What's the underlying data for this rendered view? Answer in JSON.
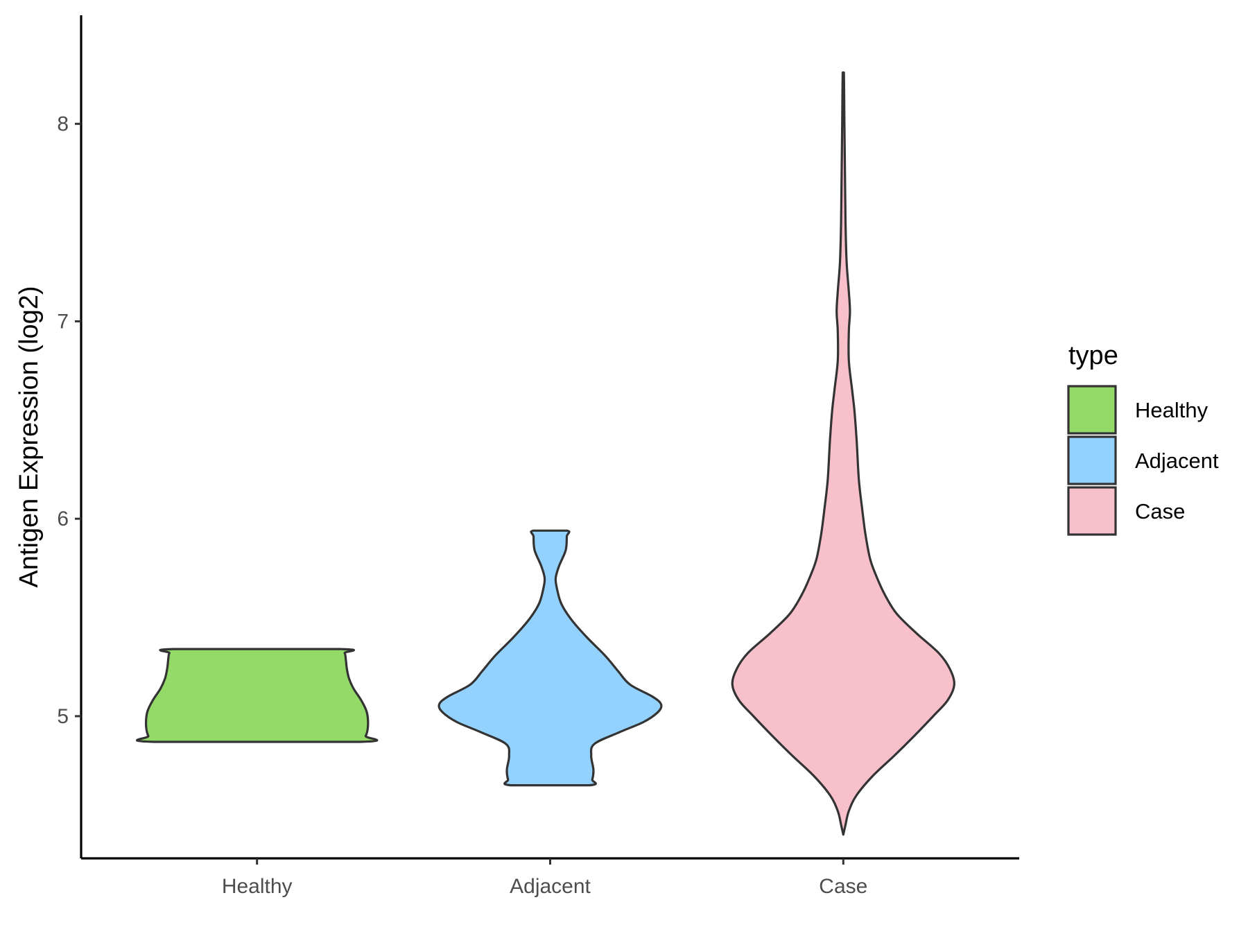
{
  "chart_data": {
    "type": "violin",
    "title": "",
    "xlabel": "",
    "ylabel": "Antigen Expression (log2)",
    "categories": [
      "Healthy",
      "Adjacent",
      "Case"
    ],
    "y_ticks": [
      "5",
      "6",
      "7",
      "8"
    ],
    "ylim": [
      4.28,
      8.55
    ],
    "grid": false,
    "legend": {
      "title": "type",
      "position": "right",
      "entries": [
        "Healthy",
        "Adjacent",
        "Case"
      ]
    },
    "colors": {
      "Healthy": "#93da69",
      "Adjacent": "#93d2fe",
      "Case": "#f8c0cb"
    },
    "violins": [
      {
        "name": "Healthy",
        "min": 4.87,
        "max": 5.34,
        "profile": [
          [
            4.87,
            0.93
          ],
          [
            4.9,
            0.98
          ],
          [
            4.95,
            1.0
          ],
          [
            5.02,
            0.99
          ],
          [
            5.08,
            0.94
          ],
          [
            5.14,
            0.87
          ],
          [
            5.19,
            0.83
          ],
          [
            5.24,
            0.81
          ],
          [
            5.29,
            0.8
          ],
          [
            5.32,
            0.79
          ],
          [
            5.34,
            0.75
          ]
        ]
      },
      {
        "name": "Adjacent",
        "min": 4.65,
        "max": 5.94,
        "profile": [
          [
            4.65,
            0.35
          ],
          [
            4.68,
            0.38
          ],
          [
            4.73,
            0.39
          ],
          [
            4.8,
            0.37
          ],
          [
            4.86,
            0.4
          ],
          [
            4.92,
            0.63
          ],
          [
            4.97,
            0.84
          ],
          [
            5.02,
            0.97
          ],
          [
            5.06,
            1.0
          ],
          [
            5.1,
            0.92
          ],
          [
            5.16,
            0.72
          ],
          [
            5.23,
            0.61
          ],
          [
            5.31,
            0.49
          ],
          [
            5.4,
            0.33
          ],
          [
            5.49,
            0.19
          ],
          [
            5.57,
            0.1
          ],
          [
            5.65,
            0.06
          ],
          [
            5.7,
            0.05
          ],
          [
            5.76,
            0.08
          ],
          [
            5.84,
            0.14
          ],
          [
            5.91,
            0.15
          ],
          [
            5.94,
            0.15
          ]
        ]
      },
      {
        "name": "Case",
        "min": 4.4,
        "max": 8.26,
        "profile": [
          [
            4.4,
            0.0
          ],
          [
            4.45,
            0.02
          ],
          [
            4.52,
            0.05
          ],
          [
            4.6,
            0.12
          ],
          [
            4.7,
            0.27
          ],
          [
            4.8,
            0.46
          ],
          [
            4.9,
            0.64
          ],
          [
            5.0,
            0.81
          ],
          [
            5.08,
            0.94
          ],
          [
            5.16,
            1.0
          ],
          [
            5.24,
            0.96
          ],
          [
            5.32,
            0.86
          ],
          [
            5.42,
            0.66
          ],
          [
            5.52,
            0.48
          ],
          [
            5.62,
            0.37
          ],
          [
            5.72,
            0.29
          ],
          [
            5.8,
            0.24
          ],
          [
            5.92,
            0.2
          ],
          [
            6.05,
            0.17
          ],
          [
            6.2,
            0.14
          ],
          [
            6.4,
            0.12
          ],
          [
            6.55,
            0.1
          ],
          [
            6.65,
            0.08
          ],
          [
            6.8,
            0.05
          ],
          [
            6.95,
            0.05
          ],
          [
            7.05,
            0.06
          ],
          [
            7.15,
            0.05
          ],
          [
            7.3,
            0.03
          ],
          [
            7.5,
            0.02
          ],
          [
            7.75,
            0.015
          ],
          [
            8.0,
            0.01
          ],
          [
            8.26,
            0.005
          ]
        ]
      }
    ]
  }
}
